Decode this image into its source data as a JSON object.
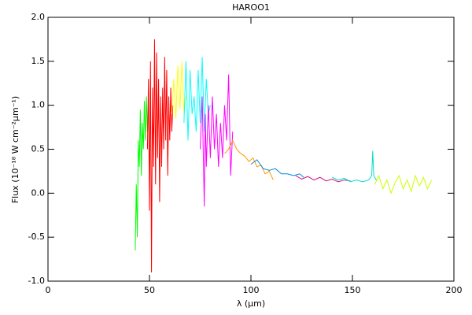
{
  "chart_data": {
    "type": "line",
    "title": "HAROO1",
    "x_label": "λ (μm)",
    "y_label": "Flux (10⁻¹⁸ W cm⁻²μm⁻¹)",
    "xlim": [
      0,
      200
    ],
    "xticks": [
      0,
      50,
      100,
      150,
      200
    ],
    "ylim": [
      -1.0,
      2.0
    ],
    "yticks": [
      {
        "value": -1.0,
        "label": "-1.0"
      },
      -0.5,
      {
        "value": 0.0,
        "label": "0.0"
      },
      0.5,
      {
        "value": 1.0,
        "label": "1.0"
      },
      1.5,
      {
        "value": 2.0,
        "label": "2.0"
      }
    ],
    "series": [
      {
        "color": "#00ff00",
        "x": [
          43,
          43.5,
          44,
          44.5,
          45,
          45.5,
          46,
          46.5,
          47,
          47.5,
          48,
          48.5,
          49,
          49.5
        ],
        "values": [
          -0.65,
          0.1,
          -0.5,
          0.6,
          0.3,
          0.95,
          0.2,
          0.8,
          0.5,
          1.05,
          0.6,
          1.1,
          0.7,
          0.9
        ]
      },
      {
        "color": "#ff0000",
        "x": [
          49,
          49.5,
          50,
          50.5,
          51,
          51.5,
          52,
          52.5,
          53,
          53.5,
          54,
          54.5,
          55,
          55.5,
          56,
          56.5,
          57,
          57.5,
          58,
          58.5,
          59,
          59.5,
          60,
          60.5,
          61,
          61.5
        ],
        "values": [
          0.5,
          1.3,
          -0.2,
          1.5,
          -0.9,
          1.2,
          0.3,
          1.75,
          0.1,
          1.6,
          0.4,
          1.3,
          -0.1,
          1.1,
          0.3,
          1.2,
          0.5,
          1.55,
          0.6,
          1.4,
          0.2,
          1.1,
          0.6,
          1.2,
          0.7,
          1.0
        ]
      },
      {
        "color": "#ffff00",
        "x": [
          61,
          62,
          63,
          64,
          65,
          66,
          67,
          68
        ],
        "values": [
          0.9,
          1.3,
          0.85,
          1.45,
          0.95,
          1.5,
          0.9,
          1.1
        ]
      },
      {
        "color": "#00ffff",
        "x": [
          67,
          68,
          69,
          70,
          71,
          72,
          73,
          74,
          75,
          76,
          77,
          78,
          79,
          80
        ],
        "values": [
          0.8,
          1.5,
          0.6,
          1.4,
          0.9,
          1.1,
          0.7,
          1.4,
          0.8,
          1.55,
          0.7,
          1.3,
          0.9,
          1.0
        ]
      },
      {
        "color": "#ff00ff",
        "x": [
          75,
          76,
          77,
          77.5,
          78,
          79,
          80,
          81,
          82,
          83,
          84,
          85,
          86,
          87,
          88,
          89,
          90,
          91
        ],
        "values": [
          0.5,
          1.1,
          -0.15,
          0.9,
          0.3,
          1.0,
          0.4,
          1.1,
          0.5,
          0.9,
          0.3,
          0.8,
          0.4,
          1.0,
          0.6,
          1.35,
          0.2,
          0.7
        ]
      },
      {
        "color": "#ff9900",
        "x": [
          87,
          89,
          91,
          93,
          95,
          97,
          99,
          101,
          103,
          105,
          107,
          109,
          111
        ],
        "values": [
          0.45,
          0.5,
          0.6,
          0.5,
          0.45,
          0.42,
          0.36,
          0.4,
          0.3,
          0.32,
          0.22,
          0.25,
          0.15
        ]
      },
      {
        "color": "#0088dd",
        "x": [
          100,
          103,
          106,
          109,
          112,
          115,
          118,
          121,
          124,
          126
        ],
        "values": [
          0.33,
          0.38,
          0.28,
          0.26,
          0.28,
          0.22,
          0.22,
          0.2,
          0.22,
          0.18
        ]
      },
      {
        "color": "#d0107a",
        "x": [
          122,
          125,
          128,
          131,
          134,
          137,
          140,
          143,
          146,
          149
        ],
        "values": [
          0.2,
          0.16,
          0.19,
          0.15,
          0.18,
          0.14,
          0.16,
          0.13,
          0.15,
          0.14
        ]
      },
      {
        "color": "#00e0c8",
        "x": [
          140,
          143,
          146,
          149,
          152,
          155,
          158,
          159.5,
          160,
          160.5,
          162
        ],
        "values": [
          0.18,
          0.15,
          0.17,
          0.13,
          0.15,
          0.13,
          0.15,
          0.2,
          0.48,
          0.2,
          0.14
        ]
      },
      {
        "color": "#ccff00",
        "x": [
          161,
          163,
          165,
          167,
          169,
          171,
          173,
          175,
          177,
          179,
          181,
          183,
          185,
          187,
          189
        ],
        "values": [
          0.1,
          0.2,
          0.05,
          0.15,
          0.0,
          0.12,
          0.2,
          0.05,
          0.15,
          0.02,
          0.2,
          0.08,
          0.18,
          0.05,
          0.15
        ]
      }
    ]
  }
}
